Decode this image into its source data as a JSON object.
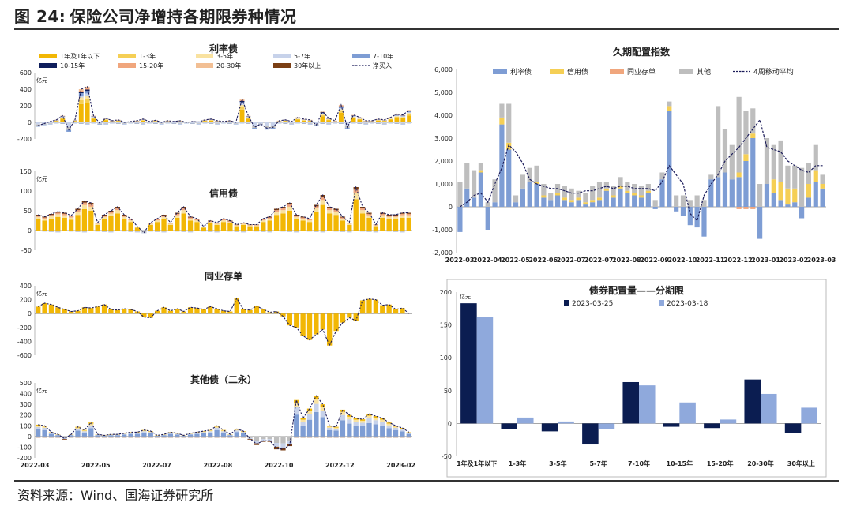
{
  "page": {
    "figure_label": "图 24:",
    "figure_title": "保险公司净增持各期限券种情况",
    "source": "资料来源：Wind、国海证券研究所"
  },
  "colors": {
    "y1": "#F2B705",
    "y2": "#F5CF55",
    "y3": "#F9E2A0",
    "grey": "#BEBEBE",
    "lightblue": "#C7D2EA",
    "blue": "#7E9DD4",
    "navy": "#0F1E5C",
    "salmon": "#F0A67D",
    "peach": "#F2BF94",
    "brown": "#7B3F14",
    "dash": "#1C1C5A",
    "bar_a": "#0B1D51",
    "bar_b": "#8FA9DC"
  },
  "chart_data": [
    {
      "id": "rate",
      "type": "bar",
      "title": "利率债",
      "unit": "亿元",
      "ylim": [
        -200,
        600
      ],
      "yticks": [
        -200,
        0,
        200,
        400,
        600
      ],
      "legend": [
        "1年及1年以下",
        "1-3年",
        "3-5年",
        "5-7年",
        "7-10年",
        "10-15年",
        "15-20年",
        "20-30年",
        "30年以上",
        "净买入"
      ],
      "net": [
        -40,
        -15,
        10,
        30,
        80,
        -90,
        30,
        400,
        430,
        80,
        -10,
        50,
        20,
        30,
        0,
        10,
        20,
        40,
        10,
        25,
        0,
        20,
        10,
        20,
        0,
        10,
        5,
        30,
        40,
        20,
        10,
        20,
        0,
        280,
        80,
        -60,
        -20,
        -70,
        -60,
        20,
        30,
        10,
        60,
        40,
        30,
        -30,
        130,
        50,
        20,
        210,
        -60,
        90,
        60,
        20,
        20,
        40,
        30,
        60,
        100,
        90,
        150
      ]
    },
    {
      "id": "credit",
      "type": "bar",
      "title": "信用债",
      "unit": "亿元",
      "ylim": [
        -50,
        150
      ],
      "yticks": [
        -50,
        0,
        50,
        100,
        150
      ],
      "net": [
        40,
        35,
        42,
        48,
        45,
        38,
        55,
        75,
        70,
        20,
        40,
        50,
        60,
        40,
        30,
        10,
        -5,
        20,
        30,
        40,
        20,
        45,
        60,
        35,
        30,
        10,
        25,
        20,
        30,
        25,
        15,
        20,
        15,
        15,
        30,
        35,
        55,
        60,
        70,
        40,
        35,
        30,
        65,
        90,
        60,
        55,
        35,
        20,
        110,
        60,
        45,
        15,
        45,
        40,
        40,
        45,
        45
      ]
    },
    {
      "id": "ncd",
      "type": "bar",
      "title": "同业存单",
      "unit": "亿元",
      "ylim": [
        -600,
        400
      ],
      "yticks": [
        -600,
        -400,
        -200,
        0,
        200,
        400
      ],
      "net": [
        100,
        150,
        130,
        90,
        60,
        30,
        40,
        90,
        80,
        100,
        130,
        60,
        50,
        70,
        60,
        30,
        -50,
        -60,
        40,
        90,
        40,
        70,
        30,
        90,
        80,
        60,
        100,
        70,
        40,
        30,
        220,
        60,
        50,
        110,
        60,
        20,
        30,
        -40,
        -170,
        -200,
        -320,
        -380,
        -300,
        -230,
        -460,
        -250,
        -130,
        -60,
        -100,
        190,
        210,
        200,
        120,
        130,
        60,
        80,
        0
      ]
    },
    {
      "id": "other",
      "type": "bar",
      "title": "其他债（二永）",
      "unit": "亿元",
      "ylim": [
        -200,
        500
      ],
      "yticks": [
        -200,
        -100,
        0,
        100,
        200,
        300,
        400,
        500
      ],
      "net": [
        110,
        100,
        40,
        20,
        -20,
        20,
        90,
        60,
        130,
        20,
        10,
        20,
        20,
        30,
        40,
        40,
        60,
        50,
        10,
        20,
        40,
        30,
        10,
        30,
        40,
        50,
        60,
        100,
        60,
        20,
        70,
        50,
        -20,
        -70,
        -40,
        -40,
        -110,
        -120,
        -80,
        340,
        170,
        260,
        380,
        300,
        100,
        90,
        250,
        200,
        170,
        160,
        210,
        190,
        170,
        130,
        100,
        80,
        40
      ]
    },
    {
      "id": "duration",
      "type": "bar",
      "title": "久期配置指数",
      "ylim": [
        -2000,
        6000
      ],
      "yticks": [
        "-2,000",
        "-1,000",
        "0",
        "1,000",
        "2,000",
        "3,000",
        "4,000",
        "5,000",
        "6,000"
      ],
      "ytick_values": [
        -2000,
        -1000,
        0,
        1000,
        2000,
        3000,
        4000,
        5000,
        6000
      ],
      "legend": [
        "利率债",
        "信用债",
        "同业存单",
        "其他",
        "4周移动平均"
      ],
      "xticks": [
        "2022-03",
        "2022-04",
        "2022-05",
        "2022-06",
        "2022-07",
        "2022-07",
        "2022-08",
        "2022-09",
        "2022-10",
        "2022-11",
        "2022-12",
        "2023-01",
        "2023-02",
        "2023-03"
      ],
      "rate": [
        -1100,
        800,
        400,
        1500,
        -1000,
        200,
        3600,
        2500,
        200,
        800,
        1100,
        1000,
        400,
        300,
        500,
        300,
        200,
        300,
        100,
        200,
        300,
        700,
        400,
        800,
        600,
        500,
        400,
        600,
        -100,
        1200,
        4200,
        -200,
        -400,
        -800,
        -900,
        -1300,
        1200,
        1300,
        1500,
        1200,
        1300,
        2000,
        3000,
        -1400,
        1000,
        600,
        300,
        100,
        200,
        -500,
        400,
        1100,
        800
      ],
      "credit": [
        0,
        0,
        0,
        100,
        0,
        0,
        300,
        300,
        0,
        0,
        0,
        100,
        100,
        0,
        100,
        100,
        100,
        100,
        100,
        100,
        100,
        100,
        100,
        100,
        100,
        100,
        100,
        100,
        0,
        0,
        200,
        0,
        0,
        0,
        0,
        0,
        0,
        0,
        0,
        0,
        200,
        300,
        200,
        0,
        0,
        600,
        800,
        700,
        600,
        0,
        600,
        500,
        200
      ],
      "ncd": [
        0,
        0,
        0,
        0,
        0,
        0,
        0,
        0,
        0,
        0,
        0,
        0,
        0,
        0,
        0,
        0,
        0,
        0,
        0,
        0,
        0,
        0,
        0,
        0,
        0,
        0,
        0,
        0,
        0,
        0,
        0,
        0,
        0,
        0,
        0,
        0,
        0,
        0,
        0,
        0,
        -100,
        -100,
        -100,
        0,
        0,
        0,
        0,
        0,
        0,
        0,
        0,
        0,
        0
      ],
      "other": [
        1100,
        1100,
        1200,
        300,
        200,
        1000,
        600,
        1700,
        300,
        600,
        600,
        700,
        500,
        300,
        400,
        500,
        500,
        300,
        400,
        600,
        700,
        300,
        400,
        400,
        400,
        400,
        400,
        300,
        300,
        300,
        200,
        500,
        500,
        300,
        500,
        300,
        200,
        3100,
        1900,
        1500,
        3300,
        1900,
        1100,
        1000,
        2000,
        1500,
        1800,
        1000,
        1000,
        1700,
        900,
        1100,
        400
      ],
      "ma4": [
        0,
        200,
        500,
        600,
        200,
        1000,
        1700,
        2700,
        2400,
        1900,
        1200,
        1000,
        900,
        800,
        800,
        700,
        600,
        600,
        700,
        700,
        800,
        900,
        800,
        900,
        900,
        800,
        800,
        800,
        700,
        1100,
        1800,
        1400,
        1000,
        -300,
        -600,
        500,
        1000,
        1400,
        2000,
        2300,
        2600,
        3000,
        3400,
        3800,
        2600,
        2500,
        2400,
        2000,
        1800,
        1600,
        1500,
        1800,
        1800
      ]
    },
    {
      "id": "by_tenor",
      "type": "bar",
      "title": "债券配置量——分期限",
      "unit": "亿元",
      "categories": [
        "1年及1年以下",
        "1-3年",
        "3-5年",
        "5-7年",
        "7-10年",
        "10-15年",
        "15-20年",
        "20-30年",
        "30年以上"
      ],
      "ylim": [
        -50,
        200
      ],
      "yticks": [
        -50,
        0,
        50,
        100,
        150,
        200
      ],
      "series": [
        {
          "name": "2023-03-25",
          "values": [
            183,
            -8,
            -12,
            -32,
            63,
            -5,
            -7,
            67,
            -15
          ]
        },
        {
          "name": "2023-03-18",
          "values": [
            162,
            9,
            3,
            -8,
            58,
            32,
            6,
            45,
            24
          ]
        }
      ]
    }
  ],
  "left_xticks": [
    "2022-03",
    "2022-05",
    "2022-07",
    "2022-08",
    "2022-10",
    "2022-12",
    "2023-02"
  ]
}
